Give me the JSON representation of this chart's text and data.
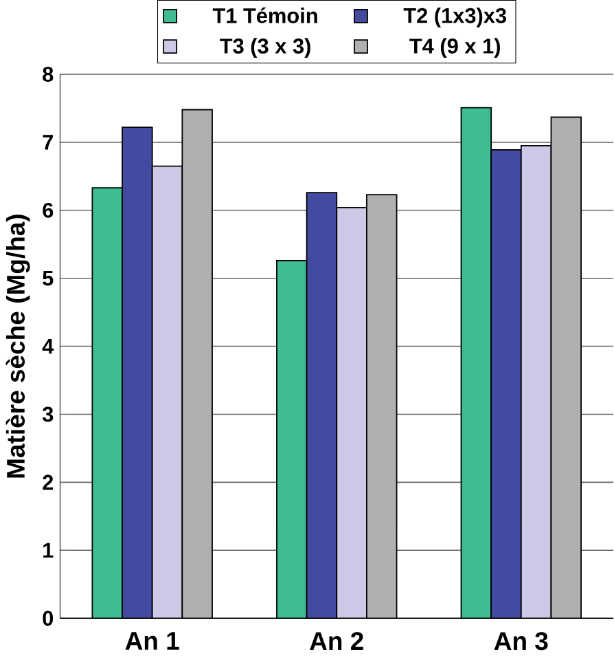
{
  "chart_data": {
    "type": "bar",
    "ylabel": "Matière sèche (Mg/ha)",
    "categories": [
      "An 1",
      "An 2",
      "An 3"
    ],
    "series": [
      {
        "name": "T1 Témoin",
        "color": "#40bc94",
        "values": [
          6.33,
          5.26,
          7.51
        ]
      },
      {
        "name": "T2 (1x3)x3",
        "color": "#434ba0",
        "values": [
          7.22,
          6.26,
          6.89
        ]
      },
      {
        "name": "T3 (3 x 3)",
        "color": "#ccc9e6",
        "values": [
          6.65,
          6.04,
          6.95
        ]
      },
      {
        "name": "T4 (9 x 1)",
        "color": "#b0b0b0",
        "values": [
          7.48,
          6.23,
          7.37
        ]
      }
    ],
    "ylim": [
      0,
      8
    ],
    "yticks": [
      0,
      1,
      2,
      3,
      4,
      5,
      6,
      7,
      8
    ],
    "grid": "y",
    "legend": "top"
  }
}
